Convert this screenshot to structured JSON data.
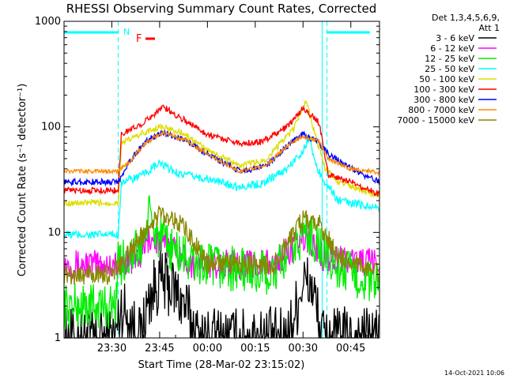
{
  "chart_data": {
    "type": "line",
    "title": "RHESSI Observing Summary Count Rates, Corrected",
    "xlabel": "Start Time (28-Mar-02 23:15:02)",
    "ylabel": "Corrected Count Rate (s⁻¹ detector⁻¹)",
    "yscale": "log",
    "ylim": [
      1,
      1000
    ],
    "xlim_minutes_after_start": [
      0,
      99
    ],
    "y_ticks": [
      "1",
      "10",
      "100",
      "1000"
    ],
    "x_ticks": [
      {
        "label": "23:30",
        "t": 15
      },
      {
        "label": "23:45",
        "t": 30
      },
      {
        "label": "00:00",
        "t": 45
      },
      {
        "label": "00:15",
        "t": 60
      },
      {
        "label": "00:30",
        "t": 75
      },
      {
        "label": "00:45",
        "t": 90
      }
    ],
    "legend_header": [
      "Det 1,3,4,5,6,9,",
      "Att 1"
    ],
    "series": [
      {
        "name": "3 - 6 keV",
        "color": "#000000",
        "values": [
          [
            0,
            1
          ],
          [
            16,
            1
          ],
          [
            18,
            2
          ],
          [
            24,
            1
          ],
          [
            27,
            2.5
          ],
          [
            30,
            3.5
          ],
          [
            34,
            3
          ],
          [
            38,
            2
          ],
          [
            42,
            1
          ],
          [
            70,
            1
          ],
          [
            73,
            2
          ],
          [
            75,
            3.5
          ],
          [
            78,
            3
          ],
          [
            81,
            1
          ],
          [
            99,
            1
          ]
        ]
      },
      {
        "name": "6 - 12 keV",
        "color": "#ff00ff",
        "values": [
          [
            0,
            5
          ],
          [
            17,
            5
          ],
          [
            24,
            6
          ],
          [
            27,
            9
          ],
          [
            30,
            8
          ],
          [
            35,
            7
          ],
          [
            40,
            5
          ],
          [
            66,
            5
          ],
          [
            70,
            6.5
          ],
          [
            76,
            9
          ],
          [
            81,
            6
          ],
          [
            99,
            5
          ]
        ]
      },
      {
        "name": "12 - 25 keV",
        "color": "#00ee00",
        "values": [
          [
            0,
            2
          ],
          [
            16,
            2
          ],
          [
            17,
            5
          ],
          [
            24,
            7
          ],
          [
            27,
            15
          ],
          [
            28,
            11
          ],
          [
            31,
            8
          ],
          [
            37,
            6
          ],
          [
            41,
            5
          ],
          [
            66,
            4
          ],
          [
            70,
            6
          ],
          [
            76,
            10
          ],
          [
            81,
            7
          ],
          [
            84,
            5
          ],
          [
            99,
            3
          ]
        ]
      },
      {
        "name": "25 - 50 keV",
        "color": "#00ffff",
        "values": [
          [
            0,
            9.5
          ],
          [
            17,
            9.5
          ],
          [
            18,
            30
          ],
          [
            24,
            34
          ],
          [
            30,
            45
          ],
          [
            36,
            36
          ],
          [
            45,
            32
          ],
          [
            55,
            27
          ],
          [
            62,
            29
          ],
          [
            70,
            40
          ],
          [
            75,
            60
          ],
          [
            77,
            80
          ],
          [
            79,
            42
          ],
          [
            82,
            30
          ],
          [
            86,
            20
          ],
          [
            99,
            17
          ]
        ]
      },
      {
        "name": "50 - 100 keV",
        "color": "#dddd00",
        "values": [
          [
            0,
            19
          ],
          [
            17,
            19
          ],
          [
            18,
            70
          ],
          [
            24,
            85
          ],
          [
            30,
            100
          ],
          [
            37,
            88
          ],
          [
            45,
            60
          ],
          [
            55,
            43
          ],
          [
            63,
            48
          ],
          [
            72,
            95
          ],
          [
            76,
            180
          ],
          [
            79,
            80
          ],
          [
            82,
            40
          ],
          [
            86,
            30
          ],
          [
            99,
            22
          ]
        ]
      },
      {
        "name": "100 - 300 keV",
        "color": "#ff0000",
        "values": [
          [
            0,
            25
          ],
          [
            17,
            25
          ],
          [
            18,
            85
          ],
          [
            25,
            110
          ],
          [
            31,
            155
          ],
          [
            37,
            120
          ],
          [
            45,
            85
          ],
          [
            55,
            70
          ],
          [
            62,
            72
          ],
          [
            70,
            100
          ],
          [
            75,
            150
          ],
          [
            80,
            110
          ],
          [
            83,
            35
          ],
          [
            90,
            30
          ],
          [
            99,
            23
          ]
        ]
      },
      {
        "name": "300 - 800 keV",
        "color": "#0000ff",
        "values": [
          [
            0,
            30
          ],
          [
            17,
            30
          ],
          [
            20,
            45
          ],
          [
            26,
            75
          ],
          [
            31,
            88
          ],
          [
            38,
            75
          ],
          [
            45,
            55
          ],
          [
            55,
            38
          ],
          [
            63,
            42
          ],
          [
            71,
            70
          ],
          [
            75,
            85
          ],
          [
            80,
            70
          ],
          [
            83,
            55
          ],
          [
            90,
            40
          ],
          [
            99,
            30
          ]
        ]
      },
      {
        "name": "800 - 7000 keV",
        "color": "#ff8800",
        "values": [
          [
            0,
            38
          ],
          [
            17,
            38
          ],
          [
            20,
            45
          ],
          [
            26,
            72
          ],
          [
            31,
            88
          ],
          [
            38,
            75
          ],
          [
            45,
            55
          ],
          [
            55,
            38
          ],
          [
            63,
            42
          ],
          [
            71,
            70
          ],
          [
            75,
            82
          ],
          [
            80,
            72
          ],
          [
            83,
            50
          ],
          [
            90,
            40
          ],
          [
            99,
            37
          ]
        ]
      },
      {
        "name": "7000 - 15000 keV",
        "color": "#888800",
        "values": [
          [
            0,
            4
          ],
          [
            15,
            4
          ],
          [
            20,
            6
          ],
          [
            25,
            10
          ],
          [
            30,
            15
          ],
          [
            34,
            14
          ],
          [
            40,
            9
          ],
          [
            45,
            5
          ],
          [
            66,
            5
          ],
          [
            70,
            8
          ],
          [
            75,
            13
          ],
          [
            80,
            12
          ],
          [
            86,
            6
          ],
          [
            92,
            5
          ],
          [
            99,
            4
          ]
        ]
      }
    ],
    "annotations": [
      {
        "text": "N",
        "color": "#00ffff"
      },
      {
        "text": "F",
        "color": "#ff0000"
      }
    ],
    "grid": false,
    "legend_position": "top-right, outside plot"
  },
  "footer": {
    "date_stamp": "14-Oct-2021 10:06"
  }
}
